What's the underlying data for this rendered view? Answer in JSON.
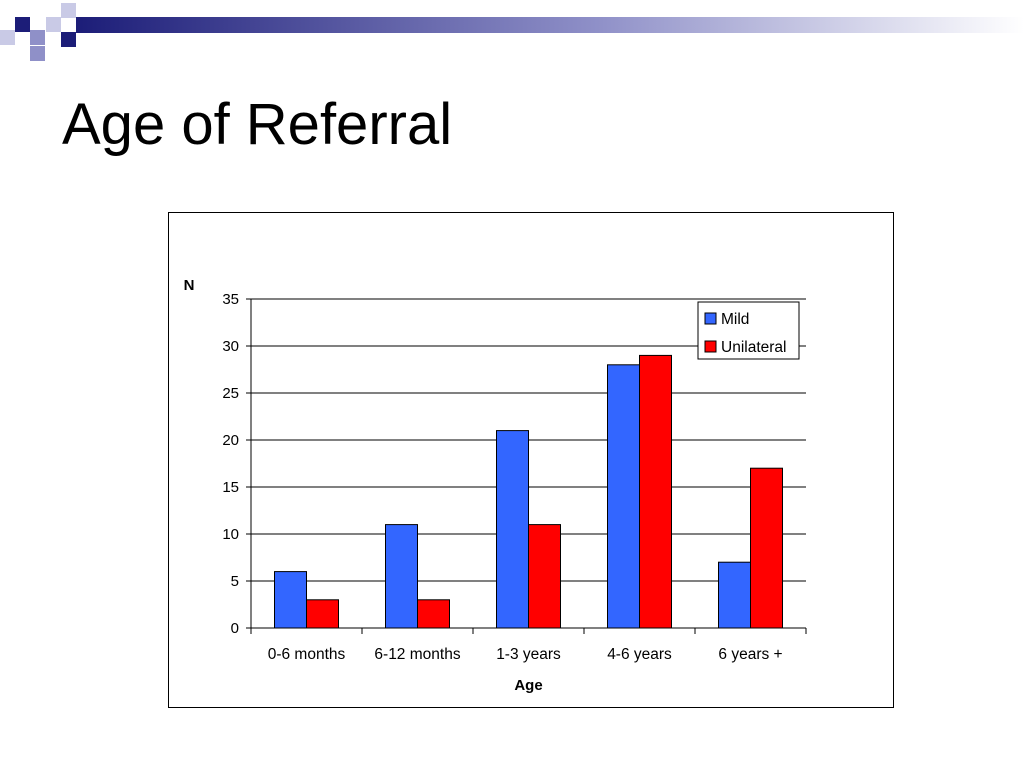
{
  "slide": {
    "title": "Age of Referral"
  },
  "colors": {
    "deco_dark": "#1c1d78",
    "deco_mid": "#8f90c8",
    "deco_light": "#c9cae6",
    "text": "#000000"
  },
  "chart_data": {
    "type": "bar",
    "title": "",
    "xlabel": "Age",
    "ylabel": "N",
    "categories": [
      "0-6 months",
      "6-12 months",
      "1-3 years",
      "4-6 years",
      "6 years +"
    ],
    "series": [
      {
        "name": "Mild",
        "color": "#3366ff",
        "values": [
          6,
          11,
          21,
          28,
          7
        ]
      },
      {
        "name": "Unilateral",
        "color": "#ff0000",
        "values": [
          3,
          3,
          11,
          29,
          17
        ]
      }
    ],
    "ylim": [
      0,
      35
    ],
    "yticks": [
      0,
      5,
      10,
      15,
      20,
      25,
      30,
      35
    ],
    "ytick_labels": [
      "0",
      "5",
      "10",
      "15",
      "20",
      "25",
      "30",
      "35"
    ],
    "grid": true,
    "legend": "top-right"
  }
}
